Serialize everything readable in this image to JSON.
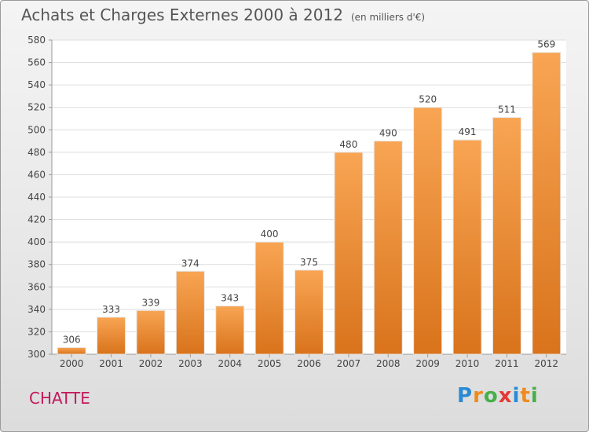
{
  "chart_data": {
    "type": "bar",
    "title": "Achats et Charges Externes 2000 à 2012",
    "subtitle": "(en milliers d'€)",
    "categories": [
      "2000",
      "2001",
      "2002",
      "2003",
      "2004",
      "2005",
      "2006",
      "2007",
      "2008",
      "2009",
      "2010",
      "2011",
      "2012"
    ],
    "values": [
      306,
      333,
      339,
      374,
      343,
      400,
      375,
      480,
      490,
      520,
      491,
      511,
      569
    ],
    "ylim": [
      300,
      580
    ],
    "yticks": [
      300,
      320,
      340,
      360,
      380,
      400,
      420,
      440,
      460,
      480,
      500,
      520,
      540,
      560,
      580
    ],
    "grid": true,
    "bar_color": "#f28e2b"
  },
  "footer": {
    "town": "CHATTE",
    "logo": "Proxiti",
    "logo_colors": [
      "#2a8ad4",
      "#f08a1c",
      "#46b04a",
      "#e53935",
      "#2a8ad4",
      "#f08a1c",
      "#46b04a"
    ]
  }
}
